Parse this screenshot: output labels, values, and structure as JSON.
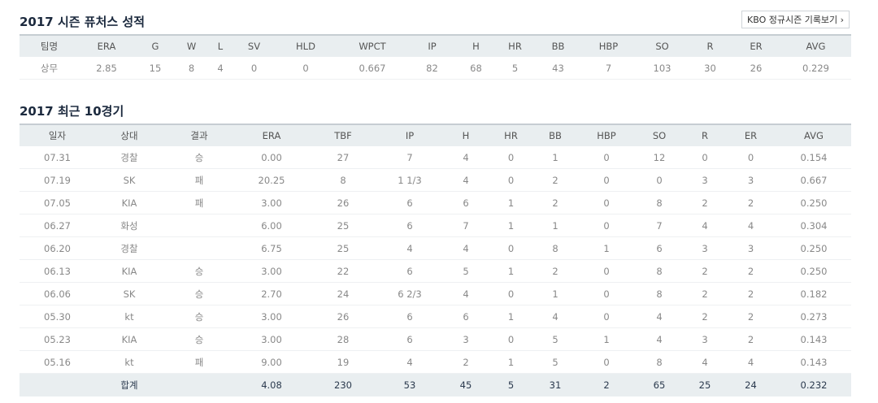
{
  "season": {
    "title": "2017 시즌 퓨처스 성적",
    "kbo_button": "KBO 정규시즌 기록보기 ›",
    "columns": [
      "팀명",
      "ERA",
      "G",
      "W",
      "L",
      "SV",
      "HLD",
      "WPCT",
      "IP",
      "H",
      "HR",
      "BB",
      "HBP",
      "SO",
      "R",
      "ER",
      "AVG"
    ],
    "rows": [
      [
        "상무",
        "2.85",
        "15",
        "8",
        "4",
        "0",
        "0",
        "0.667",
        "82",
        "68",
        "5",
        "43",
        "7",
        "103",
        "30",
        "26",
        "0.229"
      ]
    ]
  },
  "recent": {
    "title": "2017 최근 10경기",
    "columns": [
      "일자",
      "상대",
      "결과",
      "ERA",
      "TBF",
      "IP",
      "H",
      "HR",
      "BB",
      "HBP",
      "SO",
      "R",
      "ER",
      "AVG"
    ],
    "rows": [
      [
        "07.31",
        "경찰",
        "승",
        "0.00",
        "27",
        "7",
        "4",
        "0",
        "1",
        "0",
        "12",
        "0",
        "0",
        "0.154"
      ],
      [
        "07.19",
        "SK",
        "패",
        "20.25",
        "8",
        "1 1/3",
        "4",
        "0",
        "2",
        "0",
        "0",
        "3",
        "3",
        "0.667"
      ],
      [
        "07.05",
        "KIA",
        "패",
        "3.00",
        "26",
        "6",
        "6",
        "1",
        "2",
        "0",
        "8",
        "2",
        "2",
        "0.250"
      ],
      [
        "06.27",
        "화성",
        "",
        "6.00",
        "25",
        "6",
        "7",
        "1",
        "1",
        "0",
        "7",
        "4",
        "4",
        "0.304"
      ],
      [
        "06.20",
        "경찰",
        "",
        "6.75",
        "25",
        "4",
        "4",
        "0",
        "8",
        "1",
        "6",
        "3",
        "3",
        "0.250"
      ],
      [
        "06.13",
        "KIA",
        "승",
        "3.00",
        "22",
        "6",
        "5",
        "1",
        "2",
        "0",
        "8",
        "2",
        "2",
        "0.250"
      ],
      [
        "06.06",
        "SK",
        "승",
        "2.70",
        "24",
        "6 2/3",
        "4",
        "0",
        "1",
        "0",
        "8",
        "2",
        "2",
        "0.182"
      ],
      [
        "05.30",
        "kt",
        "승",
        "3.00",
        "26",
        "6",
        "6",
        "1",
        "4",
        "0",
        "4",
        "2",
        "2",
        "0.273"
      ],
      [
        "05.23",
        "KIA",
        "승",
        "3.00",
        "28",
        "6",
        "3",
        "0",
        "5",
        "1",
        "4",
        "3",
        "2",
        "0.143"
      ],
      [
        "05.16",
        "kt",
        "패",
        "9.00",
        "19",
        "4",
        "2",
        "1",
        "5",
        "0",
        "8",
        "4",
        "4",
        "0.143"
      ]
    ],
    "total": [
      "",
      "합계",
      "",
      "4.08",
      "230",
      "53",
      "45",
      "5",
      "31",
      "2",
      "65",
      "25",
      "24",
      "0.232"
    ]
  }
}
